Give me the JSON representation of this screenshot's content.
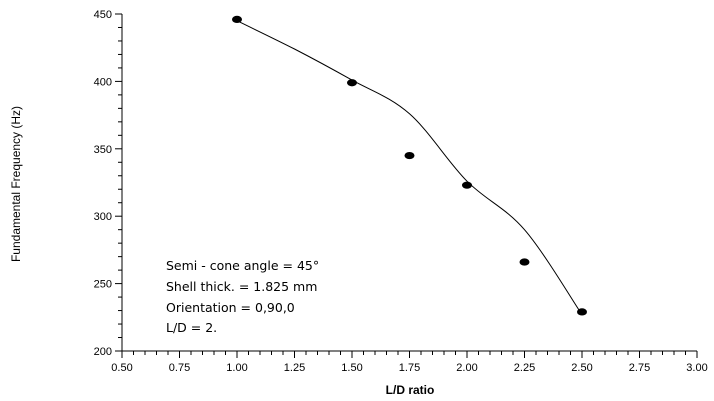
{
  "chart_data": {
    "type": "scatter",
    "xlabel": "L/D ratio",
    "ylabel": "Fundamental Frequency (Hz)",
    "xlim": [
      0.5,
      3.0
    ],
    "ylim": [
      200,
      450
    ],
    "x_ticks": [
      "0.50",
      "0.75",
      "1.00",
      "1.25",
      "1.50",
      "1.75",
      "2.00",
      "2.25",
      "2.50",
      "2.75",
      "3.00"
    ],
    "y_ticks": [
      "200",
      "250",
      "300",
      "350",
      "400",
      "450"
    ],
    "grid": false,
    "series": [
      {
        "points": [
          {
            "x": 1.0,
            "y": 446
          },
          {
            "x": 1.5,
            "y": 399
          },
          {
            "x": 1.75,
            "y": 345
          },
          {
            "x": 2.0,
            "y": 323
          },
          {
            "x": 2.25,
            "y": 266
          },
          {
            "x": 2.5,
            "y": 229
          }
        ]
      }
    ],
    "fit_curve": {
      "x": [
        1.0,
        1.25,
        1.5,
        1.75,
        2.0,
        2.25,
        2.5
      ],
      "y": [
        445,
        424,
        401,
        376,
        326,
        290,
        227
      ]
    },
    "annotations": [
      "Semi - cone angle = 45°",
      "Shell thick. = 1.825 mm",
      "Orientation = 0,90,0",
      "L/D = 2."
    ],
    "colors": {
      "marker": "#000000",
      "line": "#000000"
    }
  }
}
